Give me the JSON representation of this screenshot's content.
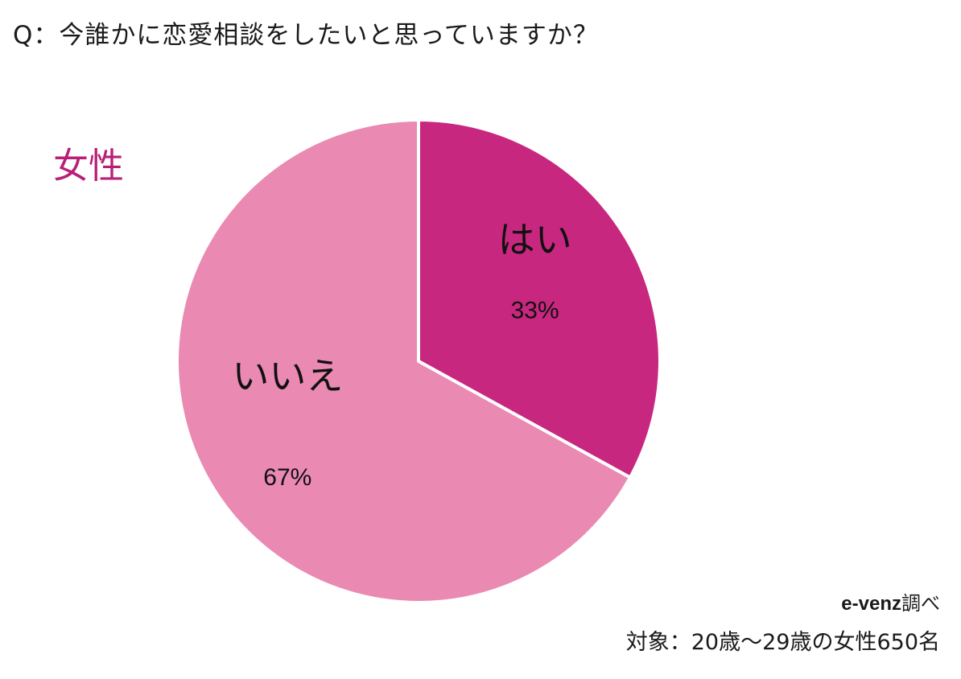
{
  "question": "Q：今誰かに恋愛相談をしたいと思っていますか？",
  "gender_label": "女性",
  "colors": {
    "yes": "#c8277f",
    "no": "#ea89b2",
    "gender": "#b81f78"
  },
  "chart_data": {
    "type": "pie",
    "title": "Q：今誰かに恋愛相談をしたいと思っていますか？",
    "slices": [
      {
        "label": "はい",
        "value": 33,
        "display": "33%",
        "color": "#c8277f"
      },
      {
        "label": "いいえ",
        "value": 67,
        "display": "67%",
        "color": "#ea89b2"
      }
    ],
    "start": "12 o'clock",
    "direction": "clockwise"
  },
  "source": {
    "brand": "e-venz",
    "suffix": "調べ"
  },
  "target": "対象：20歳〜29歳の女性650名"
}
